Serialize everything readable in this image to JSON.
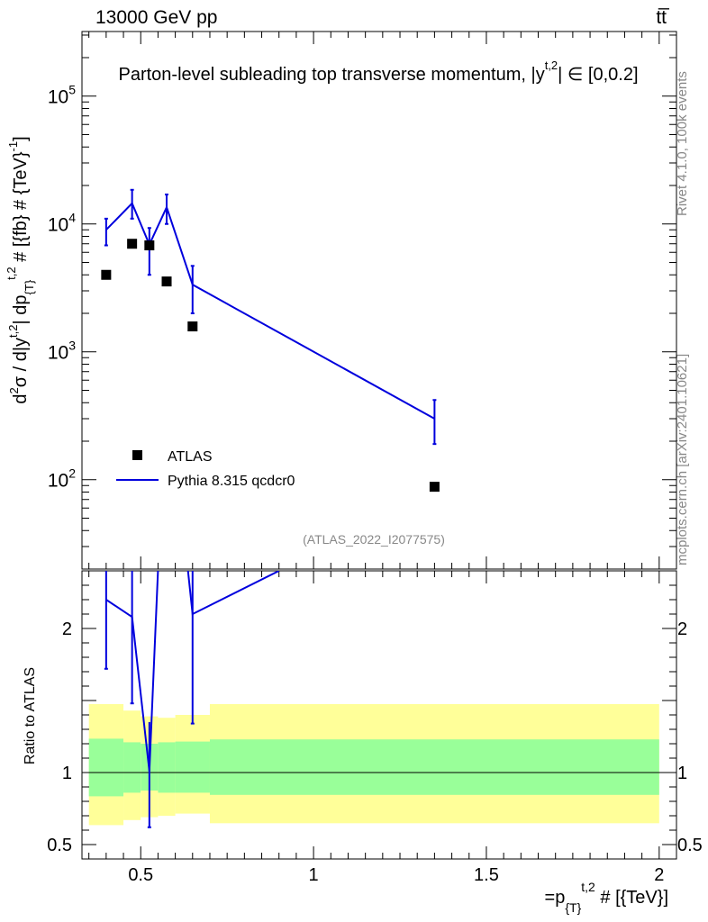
{
  "header": {
    "energy_label": "13000 GeV pp",
    "process_label": "tt̅",
    "title": "Parton-level subleading top transverse momentum, |y̅^t,2| ∈ [0,0.2]",
    "title_main": "Parton-level subleading top transverse momentum, |",
    "title_y": "y",
    "title_sup": "t,2",
    "title_tail": "| ∈ [0,0.2]"
  },
  "side_labels": {
    "rivet": "Rivet 4.1.0,  100k events",
    "mcplots": "mcplots.cern.ch [arXiv:2401.10621]"
  },
  "watermark": "(ATLAS_2022_I2077575)",
  "chart_data": {
    "type": "scatter",
    "title": "Parton-level subleading top transverse momentum, |y^t,2| ∈ [0,0.2]",
    "ylabel": "d²σ / d|y^t,2| dp_{T}^t,2 # [{fb} # {TeV}⁻¹]",
    "ylabel_parts": {
      "d": "d",
      "sup2": "2",
      "mid": "σ / d|y",
      "supt": "t,2",
      "mid2": "| dp",
      "subT": "{T}",
      "supt2": "t,2",
      "tail": " # [{fb} # {TeV}",
      "supm1": "-1",
      "close": "]"
    },
    "xlabel_parts": {
      "pre": "=p",
      "sub": "{T}",
      "sup": "t,2",
      "tail": " # [{TeV}]"
    },
    "xlim": [
      0.33,
      2.05
    ],
    "ylim": [
      20,
      320000
    ],
    "x_ticks": [
      "0.5",
      "1",
      "1.5",
      "2"
    ],
    "x_tick_values": [
      0.5,
      1,
      1.5,
      2
    ],
    "y_ticks": [
      "10",
      "10",
      "10",
      "10"
    ],
    "y_tick_exps": [
      "2",
      "3",
      "4",
      "5"
    ],
    "y_tick_values": [
      100,
      1000,
      10000,
      100000
    ],
    "legend": {
      "position": "lower-left",
      "entries": [
        "ATLAS",
        "Pythia 8.315 qcdcr0"
      ]
    },
    "series": [
      {
        "name": "ATLAS",
        "marker": "square",
        "color": "#000000",
        "x": [
          0.4,
          0.475,
          0.525,
          0.575,
          0.65,
          1.35
        ],
        "y": [
          4000,
          7000,
          6800,
          3550,
          1580,
          88
        ]
      },
      {
        "name": "Pythia 8.315 qcdcr0",
        "marker": "line",
        "color": "#0000dd",
        "x": [
          0.4,
          0.475,
          0.525,
          0.575,
          0.65,
          1.35
        ],
        "y": [
          9000,
          14500,
          6900,
          13500,
          3350,
          300
        ],
        "y_low": [
          6800,
          11000,
          4000,
          10000,
          2000,
          190
        ],
        "y_high": [
          11000,
          18500,
          9300,
          17000,
          4700,
          420
        ]
      }
    ],
    "ratio": {
      "ylabel": "Ratio to ATLAS",
      "ylim": [
        0.4,
        2.4
      ],
      "y_ticks": [
        "0.5",
        "1",
        "2"
      ],
      "y_tick_values": [
        0.5,
        1,
        2
      ],
      "bins": [
        {
          "x0": 0.35,
          "x1": 0.45,
          "green_lo": 0.835,
          "green_hi": 1.235,
          "yellow_lo": 0.635,
          "yellow_hi": 1.475
        },
        {
          "x0": 0.45,
          "x1": 0.5,
          "green_lo": 0.86,
          "green_hi": 1.21,
          "yellow_lo": 0.67,
          "yellow_hi": 1.43
        },
        {
          "x0": 0.5,
          "x1": 0.55,
          "green_lo": 0.875,
          "green_hi": 1.2,
          "yellow_lo": 0.69,
          "yellow_hi": 1.39
        },
        {
          "x0": 0.55,
          "x1": 0.6,
          "green_lo": 0.86,
          "green_hi": 1.21,
          "yellow_lo": 0.7,
          "yellow_hi": 1.38
        },
        {
          "x0": 0.6,
          "x1": 0.7,
          "green_lo": 0.86,
          "green_hi": 1.215,
          "yellow_lo": 0.715,
          "yellow_hi": 1.4
        },
        {
          "x0": 0.7,
          "x1": 2.0,
          "green_lo": 0.845,
          "green_hi": 1.23,
          "yellow_lo": 0.648,
          "yellow_hi": 1.475
        }
      ],
      "mc_x": [
        0.4,
        0.475,
        0.525,
        0.575,
        0.65,
        0.9
      ],
      "mc_y": [
        2.2,
        2.08,
        1.01,
        3.8,
        2.1,
        2.4
      ],
      "mc_err_lo": [
        1.72,
        1.48,
        0.62,
        null,
        1.34,
        null
      ],
      "mc_err_hi": [
        2.4,
        2.4,
        1.35,
        null,
        2.4,
        null
      ]
    }
  }
}
